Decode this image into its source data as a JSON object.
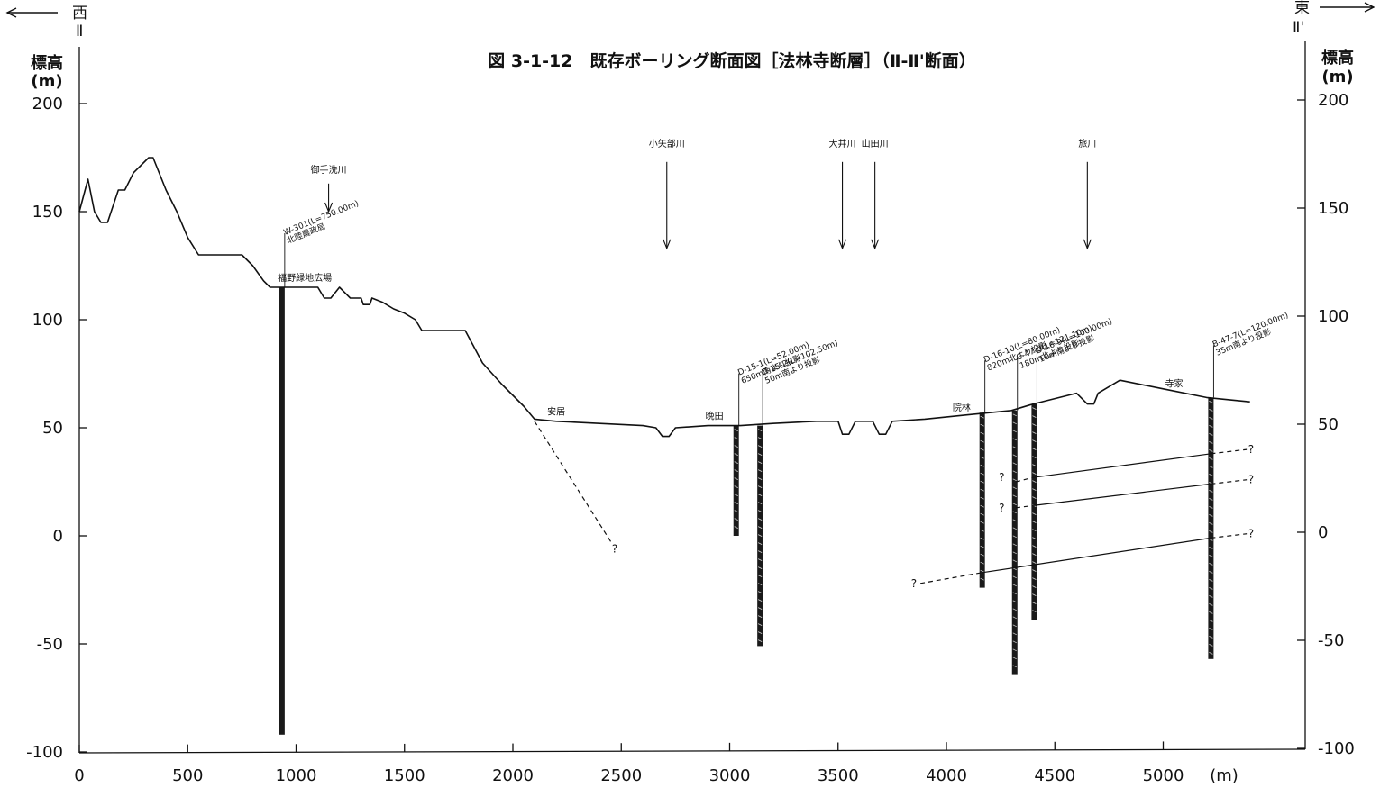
{
  "title": "図 3-1-12　既存ボーリング断面図［法林寺断層］（Ⅱ-Ⅱ'断面）",
  "direction": {
    "west": "西",
    "east": "東",
    "west_code": "Ⅱ",
    "east_code": "Ⅱ'"
  },
  "axes": {
    "ylabel_left": "標高",
    "ylabel_right": "標高",
    "yunit": "(m)",
    "xunit": "(m)",
    "yticks": [
      200,
      150,
      100,
      50,
      0,
      -50,
      -100
    ],
    "xticks": [
      0,
      500,
      1000,
      1500,
      2000,
      2500,
      3000,
      3500,
      4000,
      4500,
      5000
    ],
    "x_range": [
      0,
      5600
    ],
    "y_range": [
      -100,
      200
    ]
  },
  "ground_profile": [
    [
      0,
      150
    ],
    [
      40,
      165
    ],
    [
      70,
      150
    ],
    [
      100,
      145
    ],
    [
      130,
      145
    ],
    [
      180,
      160
    ],
    [
      210,
      160
    ],
    [
      250,
      168
    ],
    [
      320,
      175
    ],
    [
      340,
      175
    ],
    [
      400,
      160
    ],
    [
      450,
      150
    ],
    [
      500,
      138
    ],
    [
      550,
      130
    ],
    [
      600,
      130
    ],
    [
      650,
      130
    ],
    [
      700,
      130
    ],
    [
      750,
      130
    ],
    [
      800,
      125
    ],
    [
      850,
      118
    ],
    [
      880,
      115
    ],
    [
      920,
      115
    ],
    [
      960,
      115
    ],
    [
      1000,
      115
    ],
    [
      1100,
      115
    ],
    [
      1130,
      110
    ],
    [
      1160,
      110
    ],
    [
      1200,
      115
    ],
    [
      1250,
      110
    ],
    [
      1300,
      110
    ],
    [
      1310,
      107
    ],
    [
      1340,
      107
    ],
    [
      1350,
      110
    ],
    [
      1400,
      108
    ],
    [
      1450,
      105
    ],
    [
      1500,
      103
    ],
    [
      1550,
      100
    ],
    [
      1580,
      95
    ],
    [
      1640,
      95
    ],
    [
      1700,
      95
    ],
    [
      1780,
      95
    ],
    [
      1860,
      80
    ],
    [
      1950,
      70
    ],
    [
      2050,
      60
    ],
    [
      2100,
      54
    ],
    [
      2200,
      53
    ],
    [
      2400,
      52
    ],
    [
      2600,
      51
    ],
    [
      2660,
      50
    ],
    [
      2690,
      46
    ],
    [
      2720,
      46
    ],
    [
      2750,
      50
    ],
    [
      2900,
      51
    ],
    [
      3050,
      51
    ],
    [
      3200,
      52
    ],
    [
      3400,
      53
    ],
    [
      3500,
      53
    ],
    [
      3520,
      47
    ],
    [
      3550,
      47
    ],
    [
      3580,
      53
    ],
    [
      3660,
      53
    ],
    [
      3690,
      47
    ],
    [
      3720,
      47
    ],
    [
      3750,
      53
    ],
    [
      3900,
      54
    ],
    [
      4100,
      56
    ],
    [
      4300,
      58
    ],
    [
      4400,
      61
    ],
    [
      4600,
      66
    ],
    [
      4650,
      61
    ],
    [
      4680,
      61
    ],
    [
      4700,
      66
    ],
    [
      4800,
      72
    ],
    [
      5000,
      68
    ],
    [
      5200,
      64
    ],
    [
      5400,
      62
    ]
  ],
  "boreholes": [
    {
      "id": "W-301",
      "x": 935,
      "top": 115,
      "bottom": -92,
      "label": "W-301(L=750.00m)",
      "note": "北陸農政局"
    },
    {
      "id": "D-15-1",
      "x": 3030,
      "top": 51,
      "bottom": 0,
      "label": "D-15-1(L=52.00m)",
      "note": "650m南より投影"
    },
    {
      "id": "D-15-2",
      "x": 3140,
      "top": 51,
      "bottom": -51,
      "label": "D-15-2(L=102.50m)",
      "note": "50m南より投影"
    },
    {
      "id": "D-16-10",
      "x": 4165,
      "top": 57,
      "bottom": -24,
      "label": "D-16-10(L=80.00m)",
      "note": "820m北より投影"
    },
    {
      "id": "C-47-9",
      "x": 4315,
      "top": 58,
      "bottom": -64,
      "label": "C-47-9(L=121.10m)",
      "note": "180m北より投影"
    },
    {
      "id": "D-16-9",
      "x": 4405,
      "top": 61,
      "bottom": -39,
      "label": "D-16-9(L=100.00m)",
      "note": "10m南より投影"
    },
    {
      "id": "B-47-7",
      "x": 5220,
      "top": 64,
      "bottom": -57,
      "label": "B-47-7(L=120.00m)",
      "note": "35m南より投影"
    }
  ],
  "rivers": [
    {
      "name": "御手洗川",
      "x": 1150,
      "yt": 168,
      "y1": 163,
      "y2": 150
    },
    {
      "name": "小矢部川",
      "x": 2710,
      "yt": 180,
      "y1": 173,
      "y2": 133
    },
    {
      "name": "大井川",
      "x": 3520,
      "yt": 180,
      "y1": 173,
      "y2": 133
    },
    {
      "name": "山田川",
      "x": 3670,
      "yt": 180,
      "y1": 173,
      "y2": 133
    },
    {
      "name": "旅川",
      "x": 4650,
      "yt": 180,
      "y1": 173,
      "y2": 133
    }
  ],
  "places": [
    {
      "name": "福野緑地広場",
      "x": 1040,
      "y": 118
    },
    {
      "name": "安居",
      "x": 2200,
      "y": 56
    },
    {
      "name": "晩田",
      "x": 2930,
      "y": 54
    },
    {
      "name": "院林",
      "x": 4070,
      "y": 58
    },
    {
      "name": "寺家",
      "x": 5050,
      "y": 69
    }
  ],
  "fault_lines": [
    {
      "style": "dashed",
      "points": [
        [
          2100,
          53
        ],
        [
          2460,
          -4
        ]
      ],
      "q": [
        2470,
        -6
      ]
    },
    {
      "style": "solid",
      "points": [
        [
          4400,
          27
        ],
        [
          5220,
          38
        ]
      ]
    },
    {
      "style": "dashed",
      "points": [
        [
          4320,
          25
        ],
        [
          4400,
          27
        ]
      ],
      "q": [
        4255,
        27
      ]
    },
    {
      "style": "dashed",
      "points": [
        [
          5220,
          38
        ],
        [
          5390,
          40
        ]
      ],
      "q": [
        5405,
        40
      ]
    },
    {
      "style": "solid",
      "points": [
        [
          4400,
          14
        ],
        [
          5220,
          24
        ]
      ]
    },
    {
      "style": "dashed",
      "points": [
        [
          4320,
          13
        ],
        [
          4400,
          14
        ]
      ],
      "q": [
        4255,
        13
      ]
    },
    {
      "style": "dashed",
      "points": [
        [
          5220,
          24
        ],
        [
          5390,
          26
        ]
      ],
      "q": [
        5405,
        26
      ]
    },
    {
      "style": "solid",
      "points": [
        [
          4165,
          -17
        ],
        [
          5220,
          -1
        ]
      ]
    },
    {
      "style": "dashed",
      "points": [
        [
          3880,
          -22
        ],
        [
          4165,
          -17
        ]
      ],
      "q": [
        3850,
        -22
      ]
    },
    {
      "style": "dashed",
      "points": [
        [
          5220,
          -1
        ],
        [
          5390,
          1
        ]
      ],
      "q": [
        5405,
        1
      ]
    }
  ],
  "question_mark": "?"
}
